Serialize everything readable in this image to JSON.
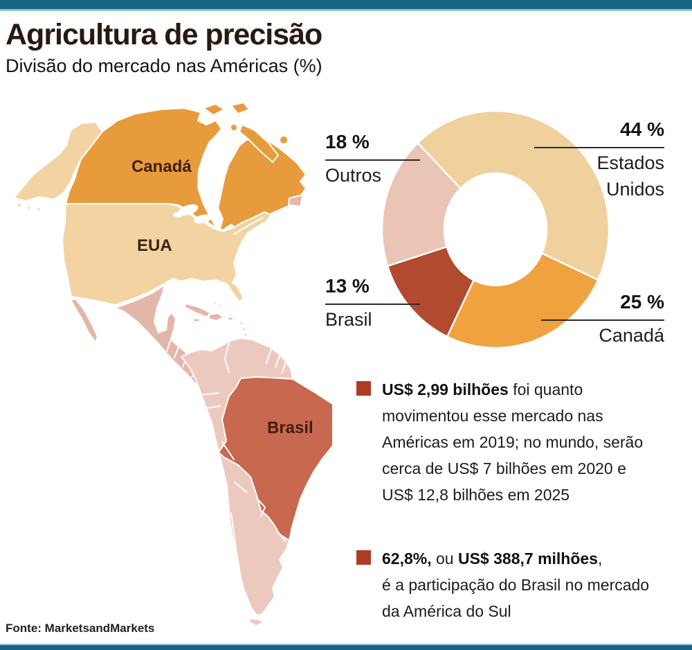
{
  "header": {
    "title": "Agricultura de precisão",
    "subtitle": "Divisão do mercado nas Américas (%)"
  },
  "map": {
    "labels": {
      "canada": "Canadá",
      "usa": "EUA",
      "brazil": "Brasil"
    },
    "colors": {
      "canada": "#E89B3C",
      "usa": "#F2D3A1",
      "mexico_central_america": "#E4B6AA",
      "caribbean": "#E4B6AA",
      "south_america_others": "#ECC9BE",
      "brazil": "#C8684F",
      "newfoundland": "#E5B9AD",
      "label_text": "#3F1F10"
    }
  },
  "chart_data": {
    "type": "donut",
    "title": "Divisão do mercado nas Américas (%)",
    "units": "%",
    "start_angle_deg": -43.2,
    "clockwise": true,
    "legend_position": "callouts",
    "segments": [
      {
        "id": "estados-unidos",
        "label": "Estados Unidos",
        "value": 44,
        "display": "44 %",
        "label_lines": [
          "Estados",
          "Unidos"
        ],
        "color": "#F0D09C"
      },
      {
        "id": "canada",
        "label": "Canadá",
        "value": 25,
        "display": "25 %",
        "label_lines": [
          "Canadá"
        ],
        "color": "#EFA23E"
      },
      {
        "id": "brasil",
        "label": "Brasil",
        "value": 13,
        "display": "13 %",
        "label_lines": [
          "Brasil"
        ],
        "color": "#B24A30"
      },
      {
        "id": "outros",
        "label": "Outros",
        "value": 18,
        "display": "18 %",
        "label_lines": [
          "Outros"
        ],
        "color": "#EAC4B5"
      }
    ]
  },
  "notes": [
    {
      "lines": [
        [
          {
            "t": "US$ 2,99 bilhões",
            "b": true
          },
          {
            "t": " foi quanto",
            "b": false
          }
        ],
        [
          {
            "t": "movimentou esse mercado nas",
            "b": false
          }
        ],
        [
          {
            "t": "Américas em 2019; no mundo, serão",
            "b": false
          }
        ],
        [
          {
            "t": "cerca de US$ 7 bilhões em 2020 e",
            "b": false
          }
        ],
        [
          {
            "t": "US$ 12,8 bilhões em 2025",
            "b": false
          }
        ]
      ]
    },
    {
      "lines": [
        [
          {
            "t": "62,8%,",
            "b": true
          },
          {
            "t": " ou ",
            "b": false
          },
          {
            "t": "US$ 388,7 milhões",
            "b": true
          },
          {
            "t": ",",
            "b": false
          }
        ],
        [
          {
            "t": "é a participação do Brasil no mercado",
            "b": false
          }
        ],
        [
          {
            "t": "da América do Sul",
            "b": false
          }
        ]
      ]
    }
  ],
  "footer": {
    "source": "Fonte: MarketsandMarkets"
  },
  "theme": {
    "top_bar": "#196383",
    "top_bar_light": "#8FC3D8",
    "bullet": "#AF3B27",
    "text": "#1A1A1A",
    "title_text": "#281A10",
    "callout_line": "#2B2B2B"
  }
}
